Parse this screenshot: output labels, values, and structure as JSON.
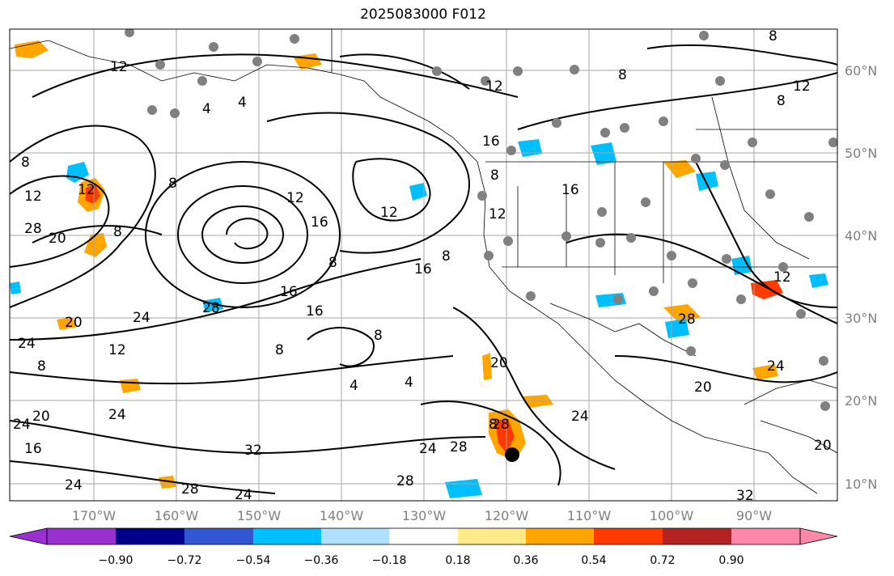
{
  "title": "2025083000 F012",
  "map": {
    "lat_labels": [
      "60°N",
      "50°N",
      "40°N",
      "30°N",
      "20°N",
      "10°N"
    ],
    "lon_labels": [
      "170°W",
      "160°W",
      "150°W",
      "140°W",
      "130°W",
      "120°W",
      "110°W",
      "100°W",
      "90°W"
    ],
    "contour_labels": [
      "12",
      "4",
      "4",
      "8",
      "12",
      "16",
      "12",
      "8",
      "16",
      "16",
      "8",
      "8",
      "12",
      "12",
      "16",
      "28",
      "20",
      "8",
      "12",
      "16",
      "8",
      "16",
      "12",
      "28",
      "24",
      "20",
      "12",
      "8",
      "24",
      "20",
      "4",
      "4",
      "8",
      "8",
      "28",
      "24",
      "8",
      "24",
      "28",
      "32",
      "24",
      "24",
      "28",
      "24",
      "28",
      "24",
      "20",
      "24",
      "12",
      "32",
      "20",
      "20",
      "16",
      "28",
      "8",
      "8",
      "12",
      "8"
    ],
    "colors": {
      "coast": "#000000",
      "grid": "#a6a6a6",
      "station": "#808080",
      "marker": "#000000"
    }
  },
  "colorbar": {
    "tick_labels": [
      "−0.90",
      "−0.72",
      "−0.54",
      "−0.36",
      "−0.18",
      "0.18",
      "0.36",
      "0.54",
      "0.72",
      "0.90"
    ],
    "colors": [
      "#9b30d0",
      "#00008b",
      "#3158d0",
      "#00bfff",
      "#b0e0ff",
      "#ffffff",
      "#ffea8a",
      "#ffa500",
      "#ff3a00",
      "#b22222",
      "#ff88aa"
    ]
  }
}
